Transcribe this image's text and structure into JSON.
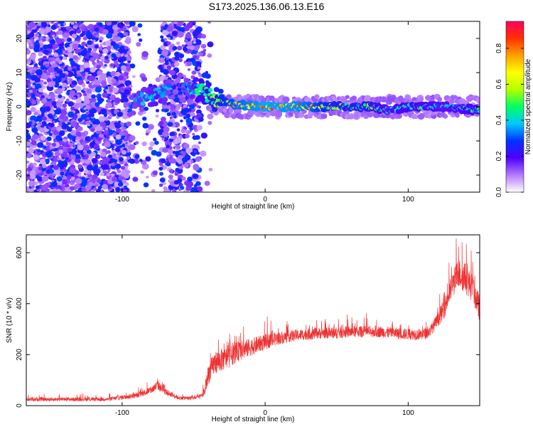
{
  "title": "S173.2025.136.06.13.E16",
  "chart_data": [
    {
      "type": "heatmap",
      "xlabel": "Height of straight line (km)",
      "ylabel": "Frequency (Hz)",
      "xlim": [
        -167,
        150
      ],
      "ylim": [
        -25,
        25
      ],
      "xticks": [
        -100,
        0,
        100
      ],
      "yticks": [
        -20,
        -10,
        0,
        10,
        20
      ],
      "grid": false,
      "colorbar": {
        "label": "Normalized spectral amplitude",
        "range": [
          0.0,
          0.95
        ],
        "ticks": [
          0.0,
          0.2,
          0.4,
          0.6,
          0.8
        ],
        "colors": [
          "#ffffff",
          "#b47aff",
          "#5000ff",
          "#0032ff",
          "#00c8ff",
          "#00ff64",
          "#b4ff00",
          "#ffff00",
          "#ffa000",
          "#ff3000",
          "#ff0064"
        ]
      },
      "trace": {
        "description_points": [
          {
            "x": -95,
            "y": 0,
            "v": 0.3
          },
          {
            "x": -85,
            "y": 3,
            "v": 0.35
          },
          {
            "x": -75,
            "y": 4,
            "v": 0.4
          },
          {
            "x": -60,
            "y": 5,
            "v": 0.25
          },
          {
            "x": -45,
            "y": 5,
            "v": 0.45
          },
          {
            "x": -35,
            "y": 2,
            "v": 0.55
          },
          {
            "x": -20,
            "y": 0.5,
            "v": 0.7
          },
          {
            "x": 0,
            "y": 0,
            "v": 0.8
          },
          {
            "x": 25,
            "y": 0,
            "v": 0.75
          },
          {
            "x": 50,
            "y": 0,
            "v": 0.55
          },
          {
            "x": 75,
            "y": 0,
            "v": 0.5
          },
          {
            "x": 85,
            "y": -1,
            "v": 0.4
          },
          {
            "x": 100,
            "y": 0,
            "v": 0.45
          },
          {
            "x": 125,
            "y": 0,
            "v": 0.4
          },
          {
            "x": 150,
            "y": -1,
            "v": 0.45
          }
        ]
      }
    },
    {
      "type": "line",
      "xlabel": "Height of straight line (km)",
      "ylabel": "SNR (10 * v/v)",
      "xlim": [
        -167,
        150
      ],
      "ylim": [
        0,
        670
      ],
      "xticks": [
        -100,
        0,
        100
      ],
      "yticks": [
        0,
        200,
        400,
        600
      ],
      "grid": false,
      "series": [
        {
          "color": "#ee3333",
          "x": [
            -167,
            -140,
            -110,
            -90,
            -80,
            -75,
            -70,
            -60,
            -50,
            -45,
            -42,
            -40,
            -35,
            -30,
            -25,
            -20,
            -10,
            0,
            10,
            20,
            30,
            40,
            50,
            60,
            70,
            80,
            90,
            100,
            110,
            115,
            120,
            125,
            130,
            135,
            140,
            145,
            150
          ],
          "y": [
            25,
            25,
            25,
            40,
            60,
            80,
            55,
            30,
            30,
            35,
            60,
            120,
            170,
            180,
            190,
            210,
            230,
            250,
            265,
            275,
            280,
            285,
            285,
            290,
            290,
            290,
            285,
            280,
            280,
            290,
            330,
            380,
            460,
            520,
            500,
            460,
            380
          ],
          "spread": [
            15,
            15,
            15,
            20,
            30,
            40,
            25,
            15,
            15,
            20,
            40,
            80,
            90,
            90,
            80,
            80,
            70,
            60,
            50,
            45,
            45,
            45,
            45,
            45,
            45,
            45,
            45,
            45,
            45,
            45,
            55,
            80,
            100,
            120,
            120,
            110,
            100
          ]
        }
      ]
    }
  ]
}
